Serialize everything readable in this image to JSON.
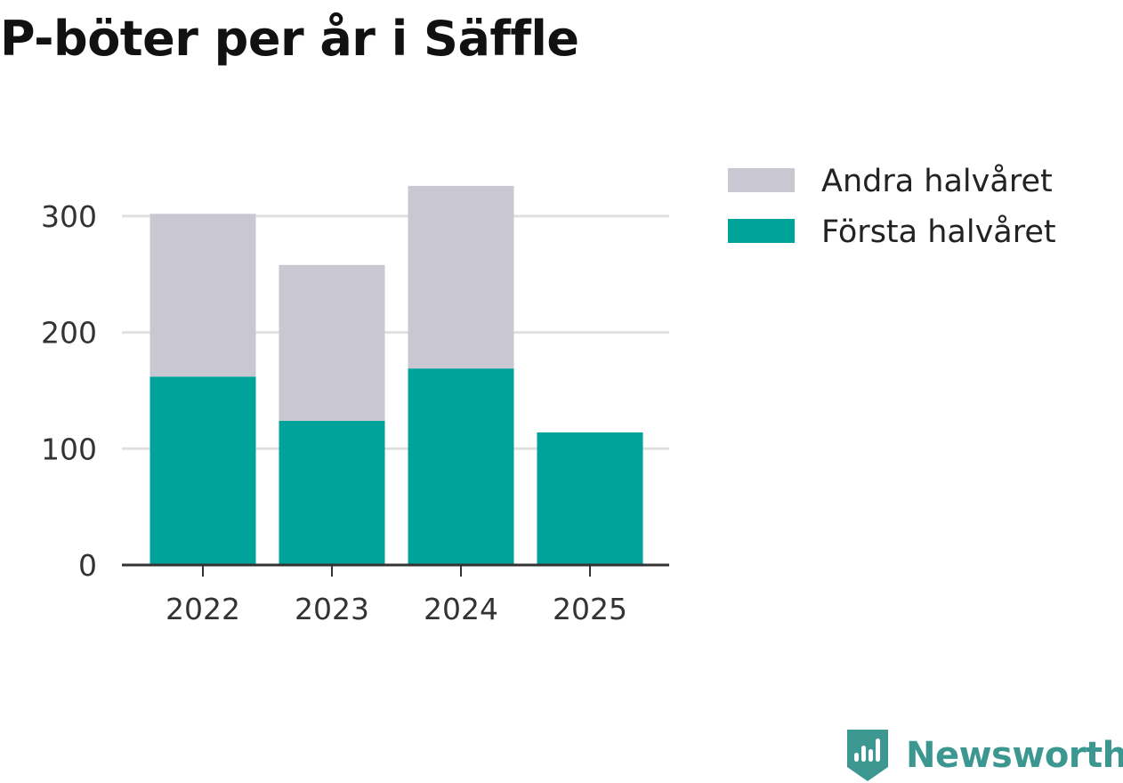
{
  "title": "P-böter per år i Säffle",
  "chart_data": {
    "type": "bar",
    "stacked": true,
    "categories": [
      "2022",
      "2023",
      "2024",
      "2025"
    ],
    "series": [
      {
        "name": "Första halvåret",
        "color": "#00a39a",
        "values": [
          162,
          124,
          169,
          114
        ]
      },
      {
        "name": "Andra halvåret",
        "color": "#c8c7d2",
        "values": [
          140,
          134,
          157,
          0
        ]
      }
    ],
    "legend_order": [
      "Andra halvåret",
      "Första halvåret"
    ],
    "legend_position": "right",
    "yticks": [
      0,
      100,
      200,
      300
    ],
    "ylim": [
      0,
      300
    ],
    "grid": true,
    "xlabel": "",
    "ylabel": ""
  },
  "brand": {
    "name": "Newsworthy",
    "color": "#3d9791"
  }
}
